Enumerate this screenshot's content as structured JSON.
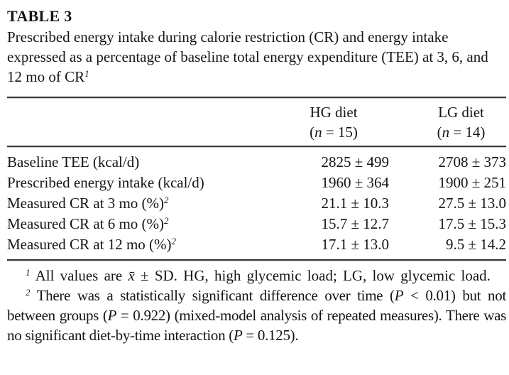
{
  "page": {
    "background": "#ffffff",
    "text_color": "#151515",
    "rule_color": "#3a3a3a"
  },
  "table": {
    "label": "TABLE 3",
    "caption": "Prescribed energy intake during calorie restriction (CR) and energy intake expressed as a percentage of baseline total energy expenditure (TEE) at 3, 6, and 12 mo of CR",
    "caption_marker": "1",
    "columns": [
      {
        "name": "HG diet",
        "n_prefix": "(",
        "n_symbol": "n",
        "n_suffix": " = 15)"
      },
      {
        "name": "LG diet",
        "n_prefix": "(",
        "n_symbol": "n",
        "n_suffix": " = 14)"
      }
    ],
    "rows": [
      {
        "label": "Baseline TEE (kcal/d)",
        "marker": "",
        "hg": "2825 ± 499",
        "lg": "2708 ± 373"
      },
      {
        "label": "Prescribed energy intake (kcal/d)",
        "marker": "",
        "hg": "1960 ± 364",
        "lg": "1900 ± 251"
      },
      {
        "label": "Measured CR at 3 mo (%)",
        "marker": "2",
        "hg": "21.1 ± 10.3",
        "lg": "27.5 ± 13.0"
      },
      {
        "label": "Measured CR at 6 mo (%)",
        "marker": "2",
        "hg": "15.7 ± 12.7",
        "lg": "17.5 ± 15.3"
      },
      {
        "label": "Measured CR at 12 mo (%)",
        "marker": "2",
        "hg": "17.1 ± 13.0",
        "lg": "9.5 ± 14.2"
      }
    ]
  },
  "footnotes": {
    "f1": {
      "marker": "1",
      "text_a": " All values are ",
      "mean_symbol": "x̄",
      "text_b": " ± SD. HG, high glycemic load; LG, low glycemic load."
    },
    "f2": {
      "marker": "2",
      "text_a": " There was a statistically significant difference over time (",
      "p1": "P",
      "text_b": " < 0.01) but not between groups (",
      "p2": "P",
      "text_c": " = 0.922) (mixed-model analysis of repeated measures). There was no significant diet-by-time interaction (",
      "p3": "P",
      "text_d": " = 0.125)."
    }
  }
}
